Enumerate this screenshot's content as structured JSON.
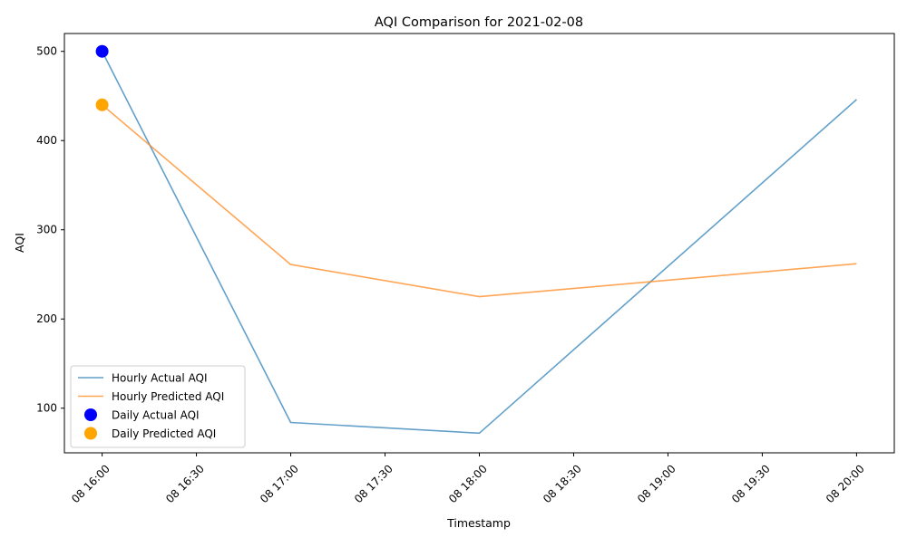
{
  "chart_data": {
    "type": "line",
    "title": "AQI Comparison for 2021-02-08",
    "xlabel": "Timestamp",
    "ylabel": "AQI",
    "xlim": [
      "2021-02-08 15:48",
      "2021-02-08 20:12"
    ],
    "ylim": [
      50,
      520
    ],
    "x_ticks": [
      "2021-02-08 16:00",
      "2021-02-08 16:30",
      "2021-02-08 17:00",
      "2021-02-08 17:30",
      "2021-02-08 18:00",
      "2021-02-08 18:30",
      "2021-02-08 19:00",
      "2021-02-08 19:30",
      "2021-02-08 20:00"
    ],
    "x_tick_labels": [
      "08 16:00",
      "08 16:30",
      "08 17:00",
      "08 17:30",
      "08 18:00",
      "08 18:30",
      "08 19:00",
      "08 19:30",
      "08 20:00"
    ],
    "y_ticks": [
      100,
      200,
      300,
      400,
      500
    ],
    "y_tick_labels": [
      "100",
      "200",
      "300",
      "400",
      "500"
    ],
    "grid": false,
    "legend_position": "lower-left",
    "series": [
      {
        "name": "Hourly Actual AQI",
        "kind": "line",
        "color": "#1f77b4",
        "x": [
          "2021-02-08 16:00",
          "2021-02-08 17:00",
          "2021-02-08 18:00",
          "2021-02-08 20:00"
        ],
        "values": [
          500,
          84,
          72,
          446
        ]
      },
      {
        "name": "Hourly Predicted AQI",
        "kind": "line",
        "color": "#ff7f0e",
        "x": [
          "2021-02-08 16:00",
          "2021-02-08 17:00",
          "2021-02-08 18:00",
          "2021-02-08 20:00"
        ],
        "values": [
          440,
          261,
          225,
          262
        ]
      },
      {
        "name": "Daily Actual AQI",
        "kind": "scatter",
        "color": "#0000ff",
        "x": [
          "2021-02-08 16:00"
        ],
        "values": [
          500
        ]
      },
      {
        "name": "Daily Predicted AQI",
        "kind": "scatter",
        "color": "#ffa500",
        "x": [
          "2021-02-08 16:00"
        ],
        "values": [
          440
        ]
      }
    ]
  }
}
